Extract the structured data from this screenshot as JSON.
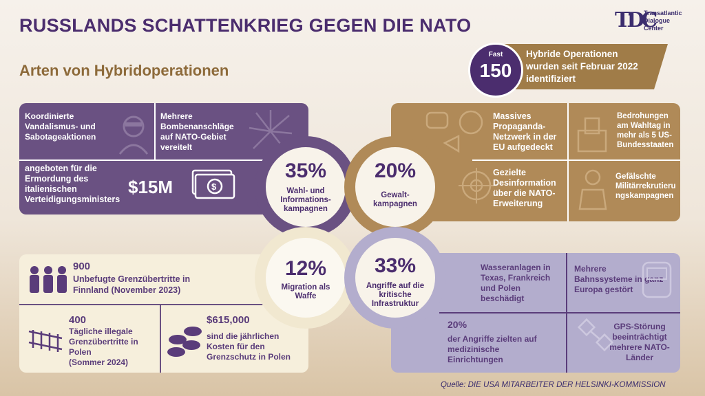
{
  "title": "RUSSLANDS SCHATTENKRIEG GEGEN DIE NATO",
  "subtitle": "Arten von Hybridoperationen",
  "logo": {
    "line1": "Transatlantic",
    "line2": "Dialogue",
    "line3": "Center"
  },
  "badge": {
    "prefix": "Fast",
    "number": "150"
  },
  "ribbon": {
    "line1": "Hybride Operationen",
    "line2": "wurden seit Februar 2022",
    "line3": "identifiziert"
  },
  "panel_purple": {
    "sabotage": [
      "Koordinierte",
      "Vandalismus- und",
      "Sabotageaktionen"
    ],
    "bombs": [
      "Mehrere",
      "Bombenanschläge",
      "auf NATO-Gebiet",
      "vereitelt"
    ],
    "bounty_text": [
      "angeboten für die",
      "Ermordung des",
      "italienischen",
      "Verteidigungsministers"
    ],
    "bounty_amount": "$15M"
  },
  "panel_brown": {
    "propaganda": [
      "Massives",
      "Propaganda-",
      "Netzwerk in der",
      "EU aufgedeckt"
    ],
    "election": [
      "Bedrohungen",
      "am Wahltag in",
      "mehr als 5 US-",
      "Bundesstaaten"
    ],
    "disinfo": [
      "Gezielte",
      "Desinformation",
      "über die NATO-",
      "Erweiterung"
    ],
    "recruit": [
      "Gefälschte",
      "Militärrekrutieru",
      "ngskampagnen"
    ]
  },
  "panel_cream": {
    "finland_num": "900",
    "finland_text": [
      "Unbefugte Grenzübertritte in",
      "Finnland (November 2023)"
    ],
    "poland_num": "400",
    "poland_text": [
      "Tägliche illegale",
      "Grenzübertritte in",
      "Polen",
      "(Sommer 2024)"
    ],
    "cost_num": "$615,000",
    "cost_text": [
      "sind die jährlichen",
      "Kosten für den",
      "Grenzschutz in Polen"
    ]
  },
  "panel_lav": {
    "water": [
      "Wasseranlagen in",
      "Texas, Frankreich",
      "und Polen",
      "beschädigt"
    ],
    "rail": [
      "Mehrere",
      "Bahnssysteme in ganz",
      "Europa gestört"
    ],
    "medical_num": "20%",
    "medical": [
      "der Angriffe zielten auf",
      "medizinische",
      "Einrichtungen"
    ],
    "gps": [
      "GPS-Störung",
      "beeinträchtigt",
      "mehrere NATO-",
      "Länder"
    ]
  },
  "circles": [
    {
      "pct": "35%",
      "label": [
        "Wahl- und",
        "Informations-",
        "kampagnen"
      ],
      "color": "#6a5182"
    },
    {
      "pct": "20%",
      "label": [
        "Gewalt-",
        "kampagnen"
      ],
      "color": "#b08a58"
    },
    {
      "pct": "12%",
      "label": [
        "Migration als",
        "Waffe"
      ],
      "color": "#f1e8d0"
    },
    {
      "pct": "33%",
      "label": [
        "Angriffe auf die",
        "kritische",
        "Infrastruktur"
      ],
      "color": "#b3adcd"
    }
  ],
  "source": "Quelle: DIE USA MITARBEITER DER HELSINKI-KOMMISSION"
}
